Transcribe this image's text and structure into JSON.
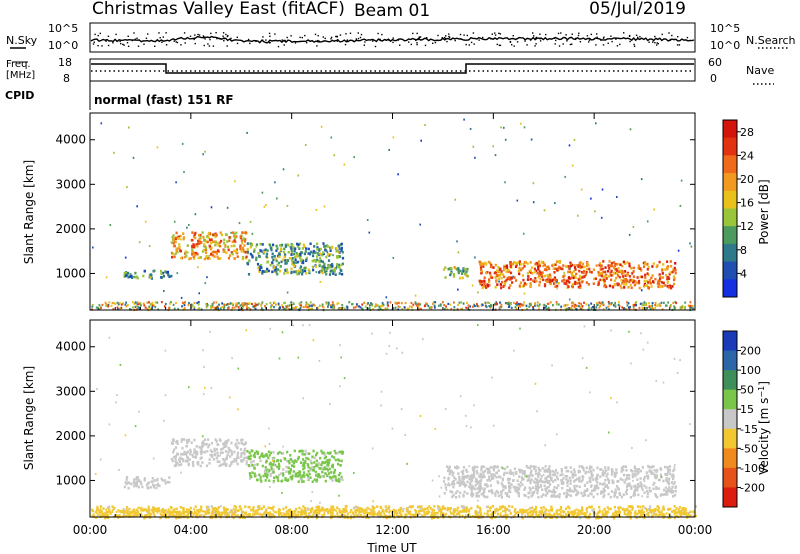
{
  "header": {
    "station": "Christmas Valley East (fitACF)",
    "beam": "Beam 01",
    "date": "05/Jul/2019"
  },
  "params": {
    "nsky_label": "N.Sky",
    "nsearch_label": "N.Search",
    "freq_label_1": "Freq.",
    "freq_label_2": "[MHz]",
    "nave_label": "Nave",
    "cpid_label": "CPID",
    "cpid_value": "normal (fast) 151 RF",
    "noise_ticks": [
      "10^5",
      "10^0"
    ],
    "freq_ticks": [
      "18",
      "8"
    ],
    "nave_ticks": [
      "60",
      "0"
    ]
  },
  "chart_data": [
    {
      "type": "heatmap",
      "panel": "power",
      "xlabel": "Time UT",
      "ylabel": "Slant Range [km]",
      "xlim": [
        0,
        24
      ],
      "ylim": [
        180,
        4600
      ],
      "x_ticks": [
        "00:00",
        "04:00",
        "08:00",
        "12:00",
        "16:00",
        "20:00",
        "00:00"
      ],
      "y_ticks": [
        1000,
        2000,
        3000,
        4000
      ],
      "colorbar": {
        "label": "Power [dB]",
        "ticks": [
          4,
          8,
          12,
          16,
          20,
          24,
          28
        ],
        "range": [
          0,
          30
        ],
        "colors": [
          "#1530e0",
          "#1f4fb0",
          "#2f7a8a",
          "#4b9a5e",
          "#9ac43a",
          "#e8c21a",
          "#f2991f",
          "#ef6a1a",
          "#e33210",
          "#d4150c"
        ]
      },
      "echo_regions": [
        {
          "t_start": 1.3,
          "t_end": 3.2,
          "r_low": 900,
          "r_high": 1100,
          "power_db": 9
        },
        {
          "t_start": 3.2,
          "t_end": 6.2,
          "r_low": 1350,
          "r_high": 1950,
          "power_db": 19
        },
        {
          "t_start": 6.2,
          "t_end": 10.0,
          "r_low": 1000,
          "r_high": 1700,
          "power_db": 10
        },
        {
          "t_start": 14.0,
          "t_end": 15.0,
          "r_low": 900,
          "r_high": 1200,
          "power_db": 12
        },
        {
          "t_start": 15.4,
          "t_end": 23.2,
          "r_low": 700,
          "r_high": 1300,
          "power_db": 22
        }
      ]
    },
    {
      "type": "heatmap",
      "panel": "velocity",
      "xlabel": "Time UT",
      "ylabel": "Slant Range [km]",
      "xlim": [
        0,
        24
      ],
      "ylim": [
        180,
        4600
      ],
      "x_ticks": [
        "00:00",
        "04:00",
        "08:00",
        "12:00",
        "16:00",
        "20:00",
        "00:00"
      ],
      "y_ticks": [
        1000,
        2000,
        3000,
        4000
      ],
      "colorbar": {
        "label": "Velocity [m s^-1]",
        "ticks": [
          200,
          100,
          50,
          15,
          -15,
          -50,
          -100,
          -200
        ],
        "colors": [
          "#1a3ab8",
          "#2a66a8",
          "#3f8f5a",
          "#79c64a",
          "#c8c8c8",
          "#f2c832",
          "#ef8a1f",
          "#e6521a",
          "#dd1c10"
        ]
      },
      "echo_regions": [
        {
          "t_start": 1.3,
          "t_end": 3.2,
          "r_low": 850,
          "r_high": 1100,
          "velocity": 0
        },
        {
          "t_start": 3.2,
          "t_end": 6.2,
          "r_low": 1350,
          "r_high": 1950,
          "velocity": 0
        },
        {
          "t_start": 6.2,
          "t_end": 10.0,
          "r_low": 1000,
          "r_high": 1700,
          "velocity": 30
        },
        {
          "t_start": 14.0,
          "t_end": 23.2,
          "r_low": 650,
          "r_high": 1350,
          "velocity": 0
        },
        {
          "t_start": 0.0,
          "t_end": 24.0,
          "r_low": 180,
          "r_high": 450,
          "velocity": -30
        }
      ]
    }
  ]
}
